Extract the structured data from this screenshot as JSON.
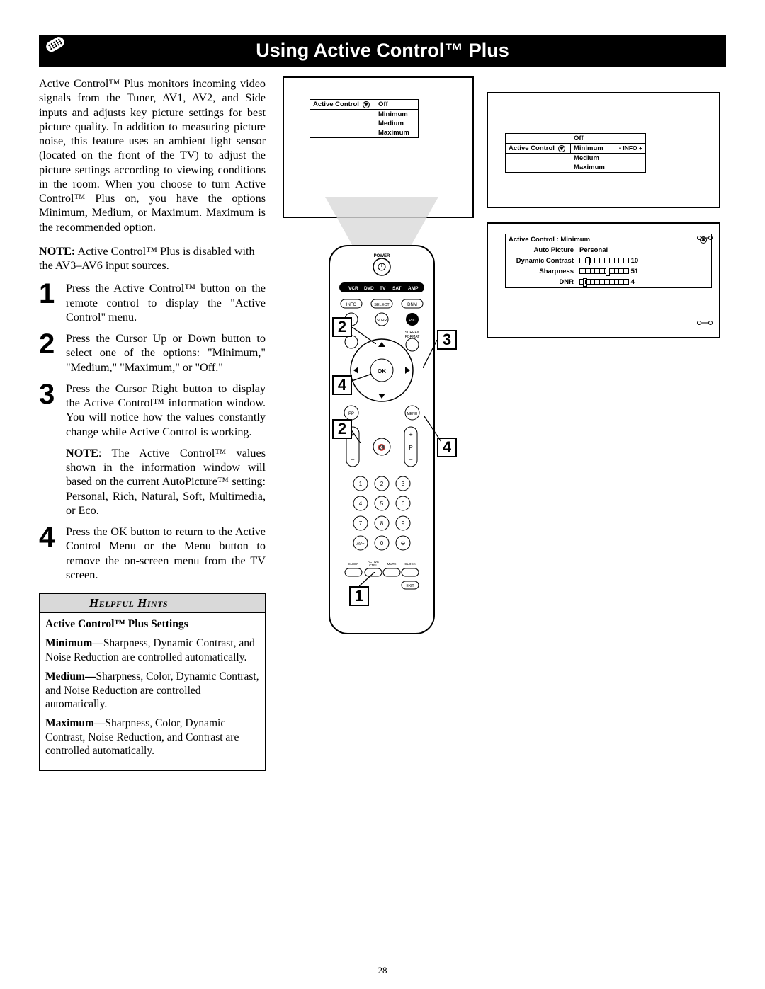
{
  "title": "Using Active Control™ Plus",
  "intro": "Active Control™ Plus monitors incoming video signals from the Tuner, AV1, AV2, and Side inputs and adjusts key picture settings for best picture quality. In addition to measuring picture noise, this feature uses an ambient light sensor (located on the front of the TV) to adjust the picture settings according to viewing conditions in the room. When you choose to turn Active Control™ Plus on, you have the options Minimum, Medium, or Maximum. Maximum is the recommended option.",
  "note_label": "NOTE:",
  "note_text": " Active Control™ Plus is disabled with the AV3–AV6 input sources.",
  "steps": [
    {
      "n": "1",
      "text": "Press the Active Control™ button on the remote control to display the \"Active Control\" menu."
    },
    {
      "n": "2",
      "text": "Press the Cursor Up or Down button to select one of the options: \"Minimum,\" \"Medium,\" \"Maximum,\" or \"Off.\""
    },
    {
      "n": "3",
      "text": "Press the Cursor Right button to display the Active Control™ information window. You will notice how the values constantly change while Active Control is working."
    },
    {
      "n": "4",
      "text": "Press the OK button to return to the Active Control Menu or the Menu button to remove the on-screen menu from the TV screen."
    }
  ],
  "step3_note_label": "NOTE",
  "step3_note": ": The Active Control™ values shown in the information window will based on the current AutoPicture™ setting: Personal, Rich, Natural, Soft, Multimedia, or Eco.",
  "hints": {
    "header": "Helpful Hints",
    "subtitle": "Active Control™ Plus Settings",
    "items": [
      {
        "k": "Minimum—",
        "v": "Sharpness, Dynamic Contrast, and Noise Reduction are controlled automatically."
      },
      {
        "k": "Medium—",
        "v": "Sharpness, Color, Dynamic Contrast, and Noise Reduction are controlled automatically."
      },
      {
        "k": "Maximum—",
        "v": "Sharpness, Color, Dynamic Contrast, Noise Reduction, and Contrast are controlled automatically."
      }
    ]
  },
  "menu1": {
    "label": "Active Control",
    "options": [
      "Off",
      "Minimum",
      "Medium",
      "Maximum"
    ],
    "selected_index": 0
  },
  "menu2": {
    "label": "Active Control",
    "options": [
      "Off",
      "Minimum",
      "Medium",
      "Maximum"
    ],
    "selected_index": 1,
    "info_tag": "• INFO +"
  },
  "info_panel": {
    "title": "Active Control  : Minimum",
    "rows": [
      {
        "label": "Auto Picture",
        "value_text": "Personal"
      },
      {
        "label": "Dynamic Contrast",
        "slider_pos": 0.12,
        "value_num": "10"
      },
      {
        "label": "Sharpness",
        "slider_pos": 0.52,
        "value_num": "51"
      },
      {
        "label": "DNR",
        "slider_pos": 0.06,
        "value_num": "4"
      }
    ]
  },
  "remote": {
    "power_label": "POWER",
    "mode_row": [
      "VCR",
      "DVD",
      "TV",
      "SAT",
      "AMP"
    ],
    "row_btns1": [
      "INFO",
      "SELECT",
      "DNM"
    ],
    "row_btns2": [
      "CC",
      "SURR",
      "PIC"
    ],
    "screen_label": "SCREEN\nFORMAT",
    "ok": "OK",
    "pp": "PP",
    "menu": "MENU",
    "mute_icon": "🔇",
    "p_label": "P",
    "numbers": [
      "1",
      "2",
      "3",
      "4",
      "5",
      "6",
      "7",
      "8",
      "9",
      "0"
    ],
    "avplus": "AV+",
    "bottom_row": [
      "SLEEP",
      "ACTIVE\nCTRL",
      "MUTE",
      "CLOCK"
    ],
    "exit": "EXIT"
  },
  "callouts": {
    "c1": "1",
    "c2": "2",
    "c3": "3",
    "c4": "4"
  },
  "page_number": "28"
}
